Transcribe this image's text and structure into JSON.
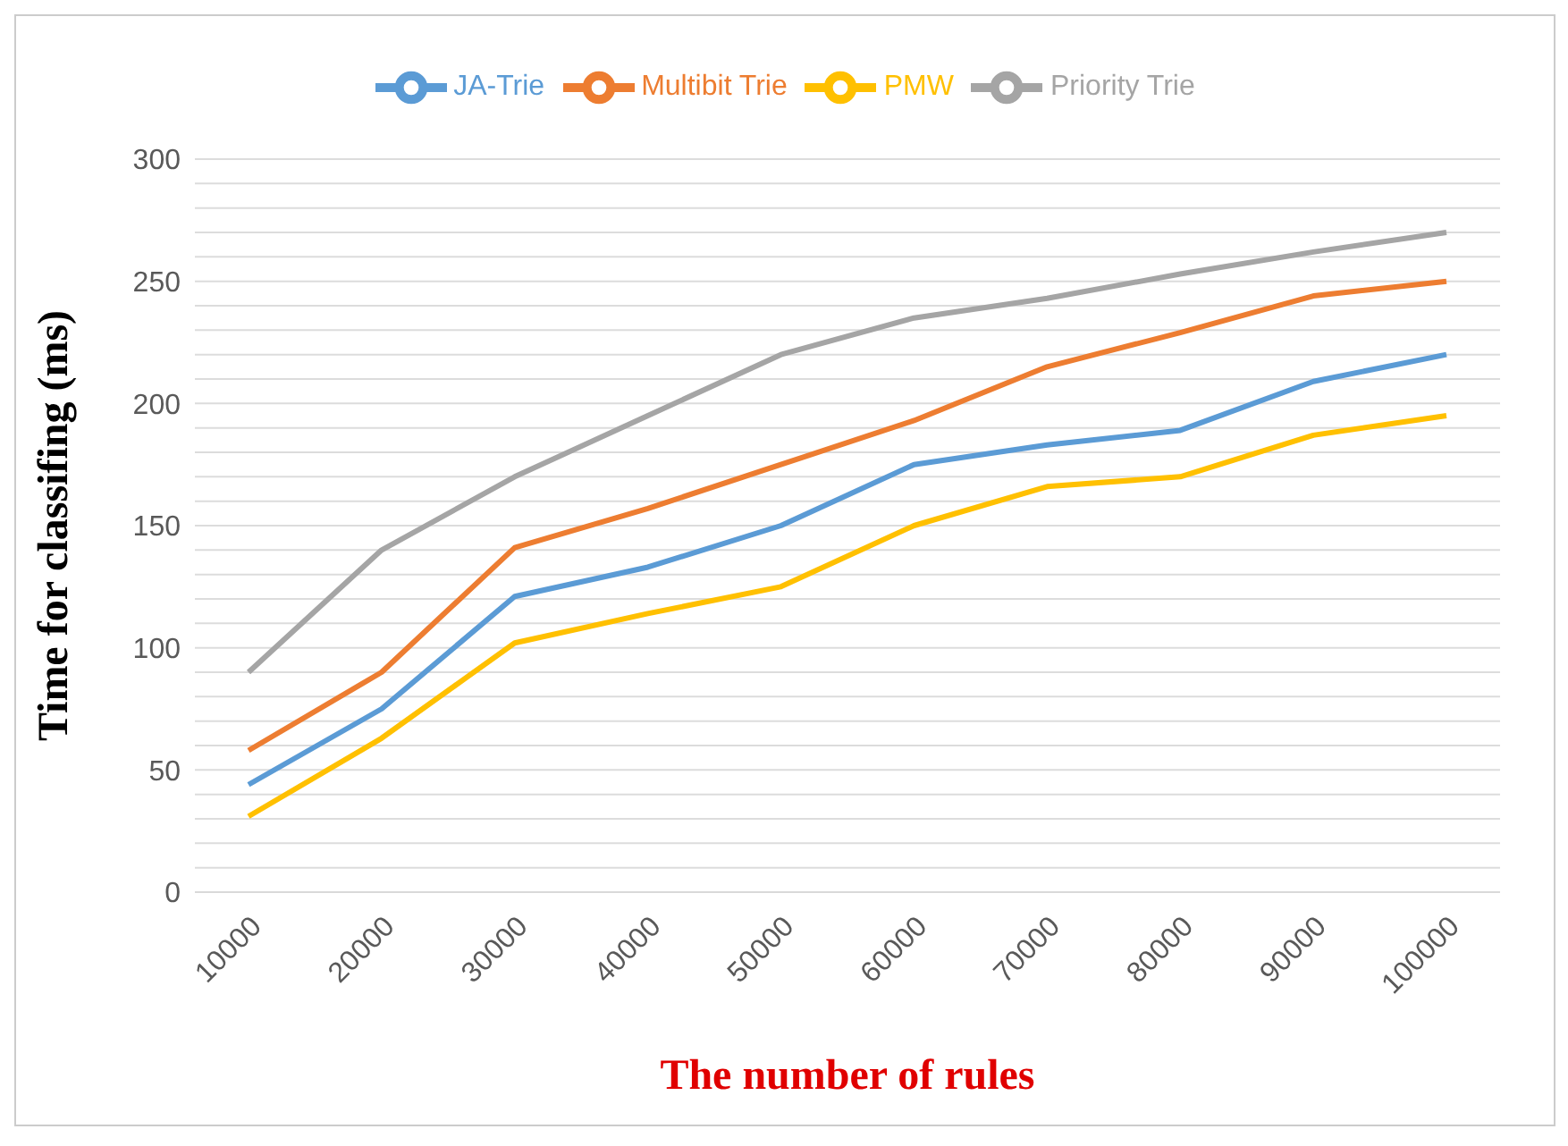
{
  "chart_data": {
    "type": "line",
    "xlabel": "The number of rules",
    "ylabel": "Time for classifing (ms)",
    "categories": [
      "10000",
      "20000",
      "30000",
      "40000",
      "50000",
      "60000",
      "70000",
      "80000",
      "90000",
      "100000"
    ],
    "series": [
      {
        "name": "JA-Trie",
        "color": "#5b9bd5",
        "values": [
          44,
          75,
          121,
          133,
          150,
          175,
          183,
          189,
          209,
          220
        ]
      },
      {
        "name": "Multibit Trie",
        "color": "#ed7d31",
        "values": [
          58,
          90,
          141,
          157,
          175,
          193,
          215,
          229,
          244,
          250
        ]
      },
      {
        "name": "Priority Trie",
        "color": "#a5a5a5",
        "values": [
          90,
          140,
          170,
          195,
          220,
          235,
          243,
          253,
          262,
          270
        ]
      },
      {
        "name": "PMW",
        "color": "#ffc000",
        "values": [
          31,
          63,
          102,
          114,
          125,
          150,
          166,
          170,
          187,
          195
        ]
      }
    ],
    "ylim": [
      0,
      300
    ],
    "yticks": [
      0,
      {
        "value": 10,
        "label": null
      },
      {
        "value": 20,
        "label": null
      },
      {
        "value": 30,
        "label": null
      },
      {
        "value": 40,
        "label": null
      },
      50,
      {
        "value": 60,
        "label": null
      },
      {
        "value": 70,
        "label": null
      },
      {
        "value": 80,
        "label": null
      },
      {
        "value": 90,
        "label": null
      },
      100,
      {
        "value": 110,
        "label": null
      },
      {
        "value": 120,
        "label": null
      },
      {
        "value": 130,
        "label": null
      },
      {
        "value": 140,
        "label": null
      },
      150,
      {
        "value": 160,
        "label": null
      },
      {
        "value": 170,
        "label": null
      },
      {
        "value": 180,
        "label": null
      },
      {
        "value": 190,
        "label": null
      },
      200,
      {
        "value": 210,
        "label": null
      },
      {
        "value": 220,
        "label": null
      },
      {
        "value": 230,
        "label": null
      },
      {
        "value": 240,
        "label": null
      },
      250,
      {
        "value": 260,
        "label": null
      },
      {
        "value": 270,
        "label": null
      },
      {
        "value": 280,
        "label": null
      },
      {
        "value": 290,
        "label": null
      },
      300
    ],
    "grid": "y",
    "legend": "top",
    "marker": "none",
    "line_style": "solid"
  }
}
